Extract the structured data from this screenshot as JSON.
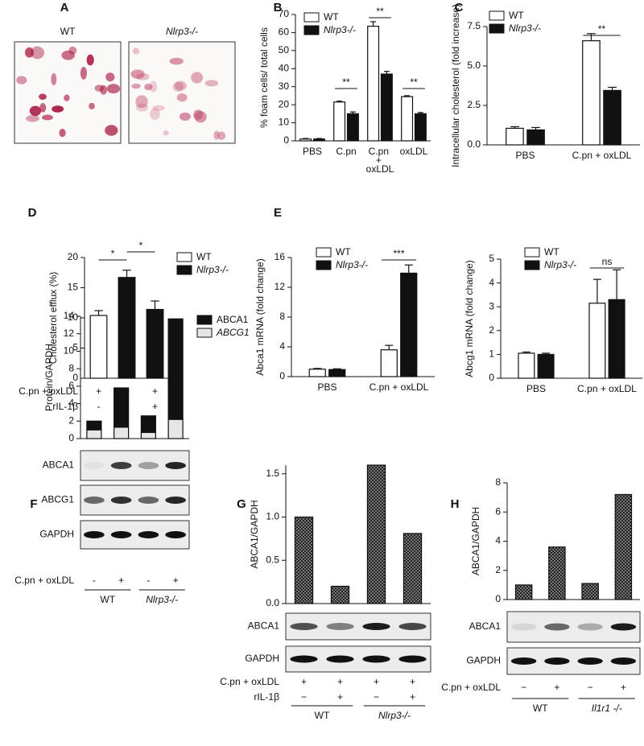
{
  "panel_labels": [
    "A",
    "B",
    "C",
    "D",
    "E",
    "F",
    "G",
    "H"
  ],
  "panel_a": {
    "titles": [
      "WT",
      "Nlrp3-/-"
    ]
  },
  "chart_data": [
    {
      "type": "bar",
      "y_label": "% foam cells/ total cells",
      "categories": [
        "PBS",
        "C.pn",
        "C.pn + oxLDL",
        "oxLDL"
      ],
      "ylim": [
        0,
        70
      ],
      "yticks": [
        0,
        10,
        20,
        30,
        40,
        50,
        60,
        70
      ],
      "series": [
        {
          "name": "WT",
          "color": "#ffffff",
          "values": [
            1,
            21.5,
            63.5,
            24.5
          ],
          "errors": [
            0.3,
            0.5,
            2.5,
            0.5
          ]
        },
        {
          "name": "Nlrp3-/-",
          "color": "#111111",
          "values": [
            1,
            15,
            37,
            15
          ],
          "errors": [
            0.3,
            1,
            1.5,
            0.7
          ]
        }
      ],
      "annotations": [
        "**",
        "**",
        "**"
      ]
    },
    {
      "type": "bar",
      "y_label": "Intracellular cholesterol (fold increase)",
      "categories": [
        "PBS",
        "C.pn + oxLDL"
      ],
      "ylim": [
        0,
        7.5
      ],
      "yticks": [
        {
          "value": 0,
          "label": "0.0"
        },
        {
          "value": 2.5,
          "label": "2.5"
        },
        {
          "value": 5,
          "label": "5.0"
        },
        {
          "value": 7.5,
          "label": "7.5"
        }
      ],
      "series": [
        {
          "name": "WT",
          "color": "#ffffff",
          "values": [
            1.05,
            6.6
          ],
          "errors": [
            0.1,
            0.45
          ]
        },
        {
          "name": "Nlrp3-/-",
          "color": "#111111",
          "values": [
            0.95,
            3.45
          ],
          "errors": [
            0.15,
            0.2
          ]
        }
      ],
      "annotations": [
        "**"
      ]
    },
    {
      "type": "bar",
      "y_label": "Cholesterol efflux (%)",
      "categories": [
        null,
        null,
        null
      ],
      "ylim": [
        0,
        20
      ],
      "yticks": [
        0,
        5,
        10,
        15,
        20
      ],
      "series": [
        {
          "name": "WT",
          "color": "#ffffff",
          "values": [
            10.4,
            null,
            null
          ],
          "errors": [
            0.8,
            null,
            null
          ]
        },
        {
          "name": "Nlrp3-/-",
          "color": "#111111",
          "values": [
            null,
            16.7,
            11.4
          ],
          "errors": [
            null,
            1.2,
            1.4
          ]
        }
      ],
      "annotations": [
        "*",
        "*"
      ],
      "conditions": [
        {
          "label": "C.pn + oxLDL",
          "signs": [
            "+",
            "+",
            "+"
          ]
        },
        {
          "label": "rIL-1β",
          "signs": [
            "-",
            "-",
            "+"
          ]
        }
      ]
    },
    {
      "type": "bar",
      "y_label": "Abca1 mRNA (fold change)",
      "categories": [
        "PBS",
        "C.pn + oxLDL"
      ],
      "ylim": [
        0,
        16
      ],
      "yticks": [
        0,
        4,
        8,
        12,
        16
      ],
      "series": [
        {
          "name": "WT",
          "color": "#ffffff",
          "values": [
            1.0,
            3.6
          ],
          "errors": [
            0.1,
            0.6
          ]
        },
        {
          "name": "Nlrp3-/-",
          "color": "#111111",
          "values": [
            0.95,
            13.9
          ],
          "errors": [
            0.1,
            1.1
          ]
        }
      ],
      "annotations": [
        "***"
      ]
    },
    {
      "type": "bar",
      "y_label": "Abcg1 mRNA (fold change)",
      "categories": [
        "PBS",
        "C.pn + oxLDL"
      ],
      "ylim": [
        0,
        5
      ],
      "yticks": [
        0,
        1,
        2,
        3,
        4,
        5
      ],
      "series": [
        {
          "name": "WT",
          "color": "#ffffff",
          "values": [
            1.05,
            3.15
          ],
          "errors": [
            0.05,
            1.0
          ]
        },
        {
          "name": "Nlrp3-/-",
          "color": "#111111",
          "values": [
            1.0,
            3.3
          ],
          "errors": [
            0.05,
            1.25
          ]
        }
      ],
      "annotations": [
        "ns"
      ]
    },
    {
      "type": "bar",
      "stacked": true,
      "y_label": "Protein/GAPDH",
      "categories": [
        null,
        null,
        null,
        null
      ],
      "ylim": [
        0,
        14
      ],
      "yticks": [
        0,
        2,
        4,
        6,
        8,
        10,
        12,
        14
      ],
      "series": [
        {
          "name": "ABCA1",
          "color": "#111111",
          "values": [
            1.0,
            4.5,
            1.9,
            11.5
          ]
        },
        {
          "name": "ABCG1",
          "color": "#e6e6e6",
          "values": [
            1.0,
            1.3,
            0.7,
            2.2
          ]
        }
      ],
      "blots": [
        "ABCA1",
        "ABCG1",
        "GAPDH"
      ],
      "conditions": [
        {
          "label": "C.pn + oxLDL",
          "signs": [
            "-",
            "+",
            "-",
            "+"
          ]
        }
      ],
      "groups": [
        "WT",
        "Nlrp3-/-"
      ]
    },
    {
      "type": "bar",
      "y_label": "ABCA1/GAPDH",
      "categories": [
        null,
        null,
        null,
        null
      ],
      "ylim": [
        0,
        1.6
      ],
      "yticks": [
        {
          "value": 0,
          "label": "0.0"
        },
        {
          "value": 0.5,
          "label": "0.5"
        },
        {
          "value": 1,
          "label": "1.0"
        },
        {
          "value": 1.5,
          "label": "1.5"
        }
      ],
      "series": [
        {
          "color": "#222222",
          "pattern": "checkered",
          "values": [
            1.0,
            0.2,
            1.6,
            0.81
          ]
        }
      ],
      "blots": [
        "ABCA1",
        "GAPDH"
      ],
      "conditions": [
        {
          "label": "C.pn + oxLDL",
          "signs": [
            "+",
            "+",
            "+",
            "+"
          ]
        },
        {
          "label": "rIL-1β",
          "signs": [
            "−",
            "+",
            "−",
            "+"
          ]
        }
      ],
      "groups": [
        "WT",
        "Nlrp3-/-"
      ]
    },
    {
      "type": "bar",
      "y_label": "ABCA1/GAPDH",
      "categories": [
        null,
        null,
        null,
        null
      ],
      "ylim": [
        0,
        8
      ],
      "yticks": [
        0,
        2,
        4,
        6,
        8
      ],
      "series": [
        {
          "color": "#222222",
          "pattern": "checkered",
          "values": [
            1.0,
            3.6,
            1.1,
            7.2
          ]
        }
      ],
      "blots": [
        "ABCA1",
        "GAPDH"
      ],
      "conditions": [
        {
          "label": "C.pn + oxLDL",
          "signs": [
            "−",
            "+",
            "−",
            "+"
          ]
        }
      ],
      "groups": [
        "WT",
        "Il1r1 -/-"
      ]
    }
  ]
}
